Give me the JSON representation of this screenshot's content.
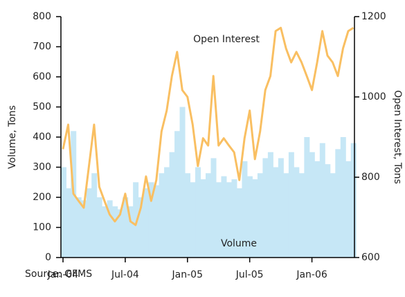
{
  "chart_data": {
    "type": "bar-line",
    "x": [
      0,
      0.5,
      1,
      1.5,
      2,
      2.5,
      3,
      3.5,
      4,
      4.5,
      5,
      5.5,
      6,
      6.5,
      7,
      7.5,
      8,
      8.5,
      9,
      9.5,
      10,
      10.5,
      11,
      11.5,
      12,
      12.5,
      13,
      13.5,
      14,
      14.5,
      15,
      15.5,
      16,
      16.5,
      17,
      17.5,
      18,
      18.5,
      19,
      19.5,
      20,
      20.5,
      21,
      21.5,
      22,
      22.5,
      23,
      23.5,
      24,
      24.5,
      25,
      25.5,
      26,
      26.5,
      27,
      27.5,
      28
    ],
    "series": [
      {
        "name": "Volume",
        "type": "bar",
        "color": "#c6e7f6",
        "values": [
          300,
          230,
          420,
          200,
          190,
          230,
          280,
          200,
          170,
          190,
          170,
          160,
          200,
          170,
          250,
          200,
          230,
          250,
          240,
          280,
          300,
          350,
          420,
          500,
          280,
          250,
          300,
          260,
          280,
          330,
          250,
          270,
          250,
          260,
          230,
          320,
          270,
          260,
          280,
          330,
          350,
          300,
          330,
          280,
          350,
          300,
          280,
          400,
          350,
          320,
          380,
          310,
          280,
          360,
          400,
          320,
          380
        ]
      },
      {
        "name": "Open Interest",
        "type": "line",
        "axis": "y2",
        "color": "#f9bf62",
        "values": [
          870,
          931,
          759,
          741,
          724,
          828,
          931,
          776,
          741,
          707,
          690,
          707,
          759,
          690,
          681,
          724,
          802,
          741,
          793,
          914,
          966,
          1052,
          1112,
          1017,
          1000,
          931,
          828,
          897,
          879,
          1052,
          879,
          897,
          879,
          862,
          793,
          897,
          966,
          845,
          914,
          1017,
          1052,
          1164,
          1172,
          1121,
          1086,
          1112,
          1086,
          1052,
          1017,
          1086,
          1164,
          1103,
          1086,
          1052,
          1121,
          1164,
          1172
        ]
      }
    ],
    "xlim": [
      -0.2,
      28.1
    ],
    "xticks": [
      {
        "value": 0,
        "label": "Jan-04"
      },
      {
        "value": 6,
        "label": "Jul-04"
      },
      {
        "value": 12,
        "label": "Jan-05"
      },
      {
        "value": 18,
        "label": "Jul-05"
      },
      {
        "value": 24,
        "label": "Jan-06"
      }
    ],
    "ylim": [
      0,
      800
    ],
    "yticks": [
      0,
      100,
      200,
      300,
      400,
      500,
      600,
      700,
      800
    ],
    "y2lim": [
      600,
      1200
    ],
    "y2ticks": [
      600,
      800,
      1000,
      1200
    ],
    "y_label": "Volume, Tons",
    "y2_label": "Open Interest, Tons",
    "source": "Source: GFMS"
  }
}
